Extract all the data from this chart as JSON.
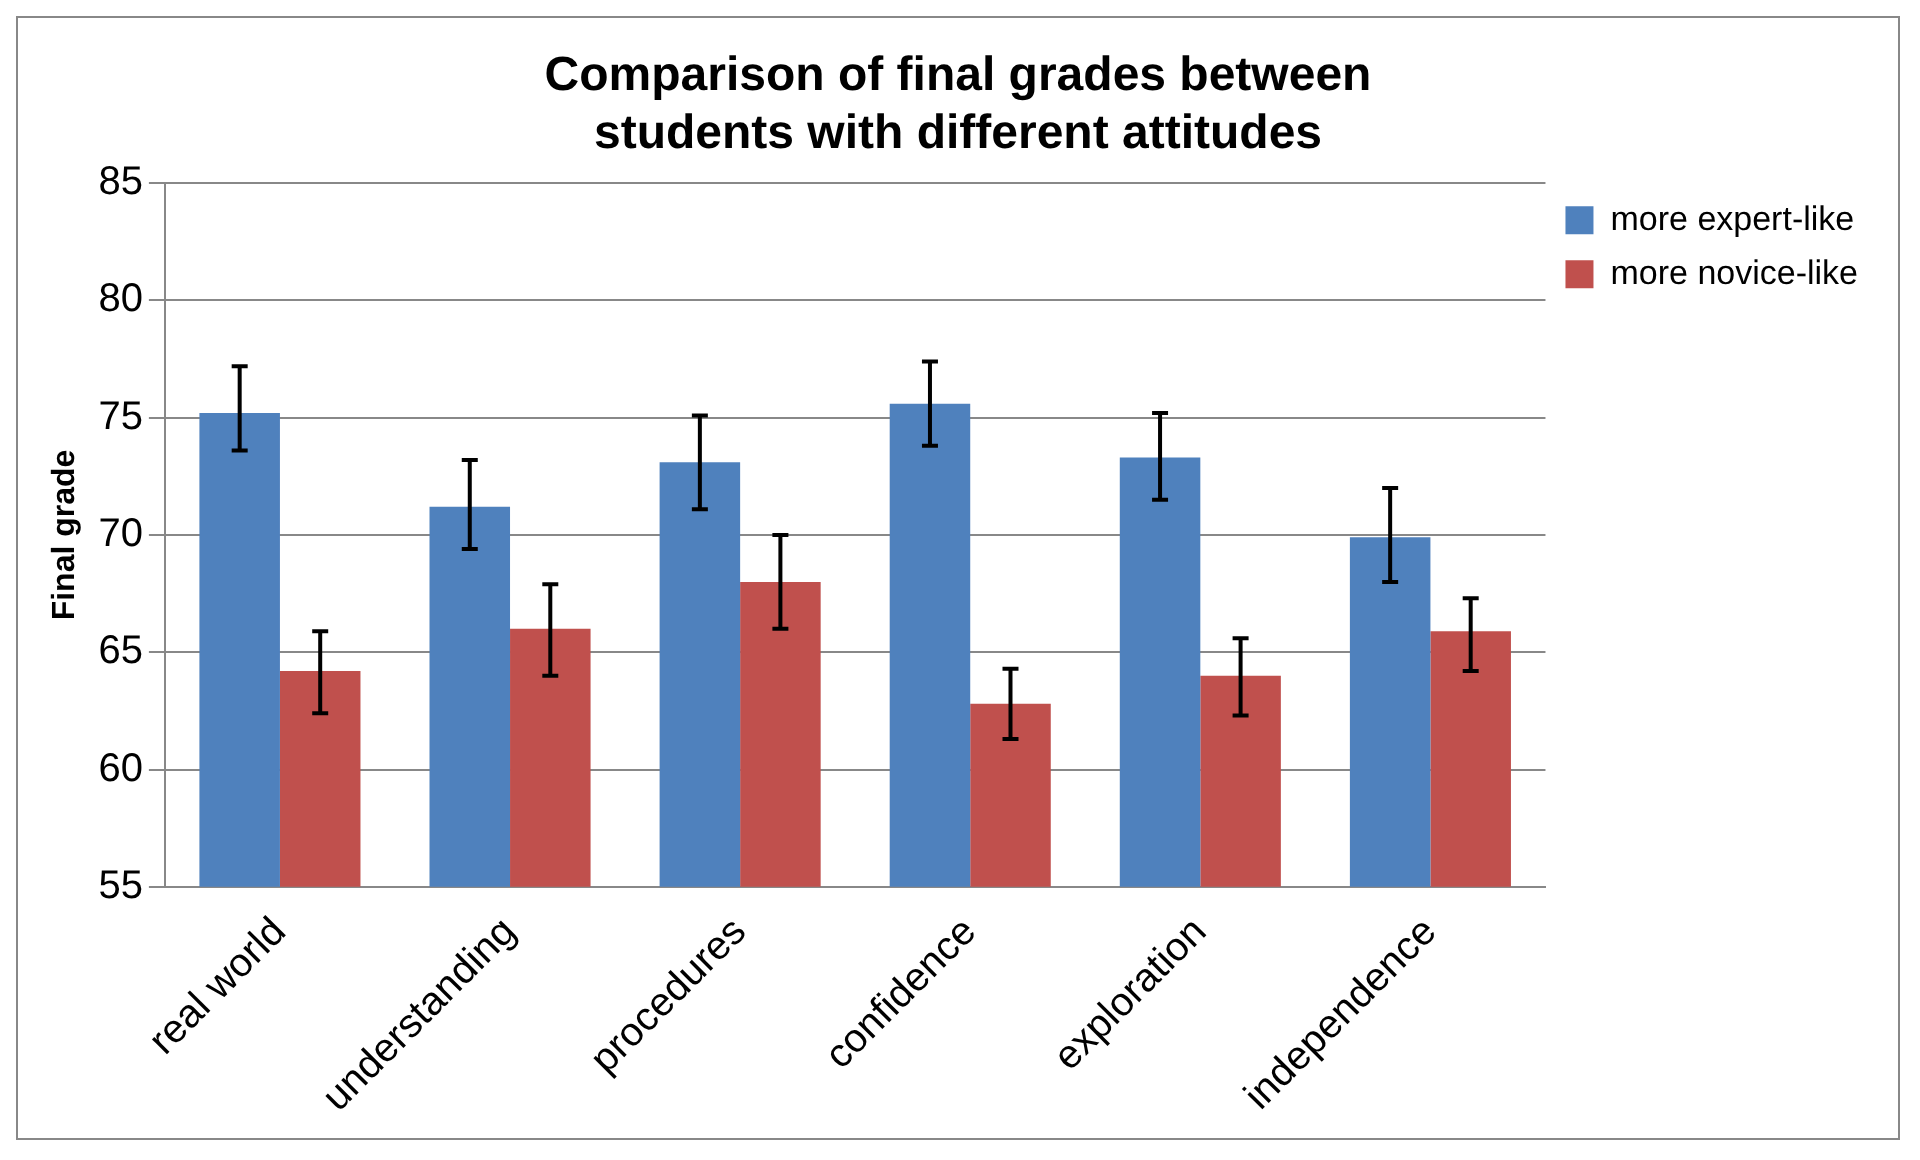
{
  "chart_data": {
    "type": "bar",
    "title": "Comparison of final grades between students with different attitudes",
    "ylabel": "Final grade",
    "categories": [
      "real world",
      "understanding",
      "procedures",
      "confidence",
      "exploration",
      "independence"
    ],
    "series": [
      {
        "name": "more expert-like",
        "color": "#4f81bd",
        "values": [
          75.2,
          71.2,
          73.1,
          75.6,
          73.3,
          69.9
        ],
        "errors": [
          [
            73.6,
            77.2
          ],
          [
            69.4,
            73.2
          ],
          [
            71.1,
            75.1
          ],
          [
            73.8,
            77.4
          ],
          [
            71.5,
            75.2
          ],
          [
            68.0,
            72.0
          ]
        ]
      },
      {
        "name": "more novice-like",
        "color": "#c0504d",
        "values": [
          64.2,
          66.0,
          68.0,
          62.8,
          64.0,
          65.9
        ],
        "errors": [
          [
            62.4,
            65.9
          ],
          [
            64.0,
            67.9
          ],
          [
            66.0,
            70.0
          ],
          [
            61.3,
            64.3
          ],
          [
            62.3,
            65.6
          ],
          [
            64.2,
            67.3
          ]
        ]
      }
    ],
    "ylim": [
      55,
      85
    ],
    "yticks": [
      55,
      60,
      65,
      70,
      75,
      80,
      85
    ],
    "grid": "y",
    "legend": "top right"
  }
}
